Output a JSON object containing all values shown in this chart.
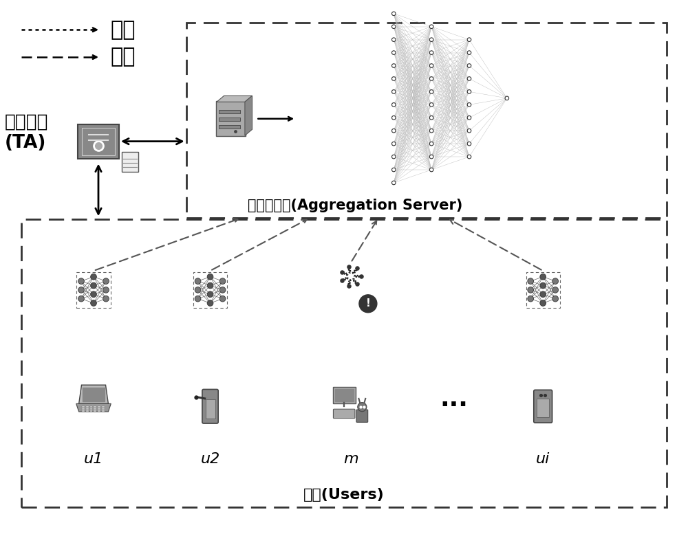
{
  "bg_color": "#ffffff",
  "legend_upload_label": "上传",
  "legend_download_label": "下载",
  "ta_label": "信任权威\n(TA)",
  "server_label": "聚合服务器(Aggregation Server)",
  "users_label": "用户(Users)",
  "user_labels": [
    "u1",
    "u2",
    "m",
    "ui"
  ]
}
